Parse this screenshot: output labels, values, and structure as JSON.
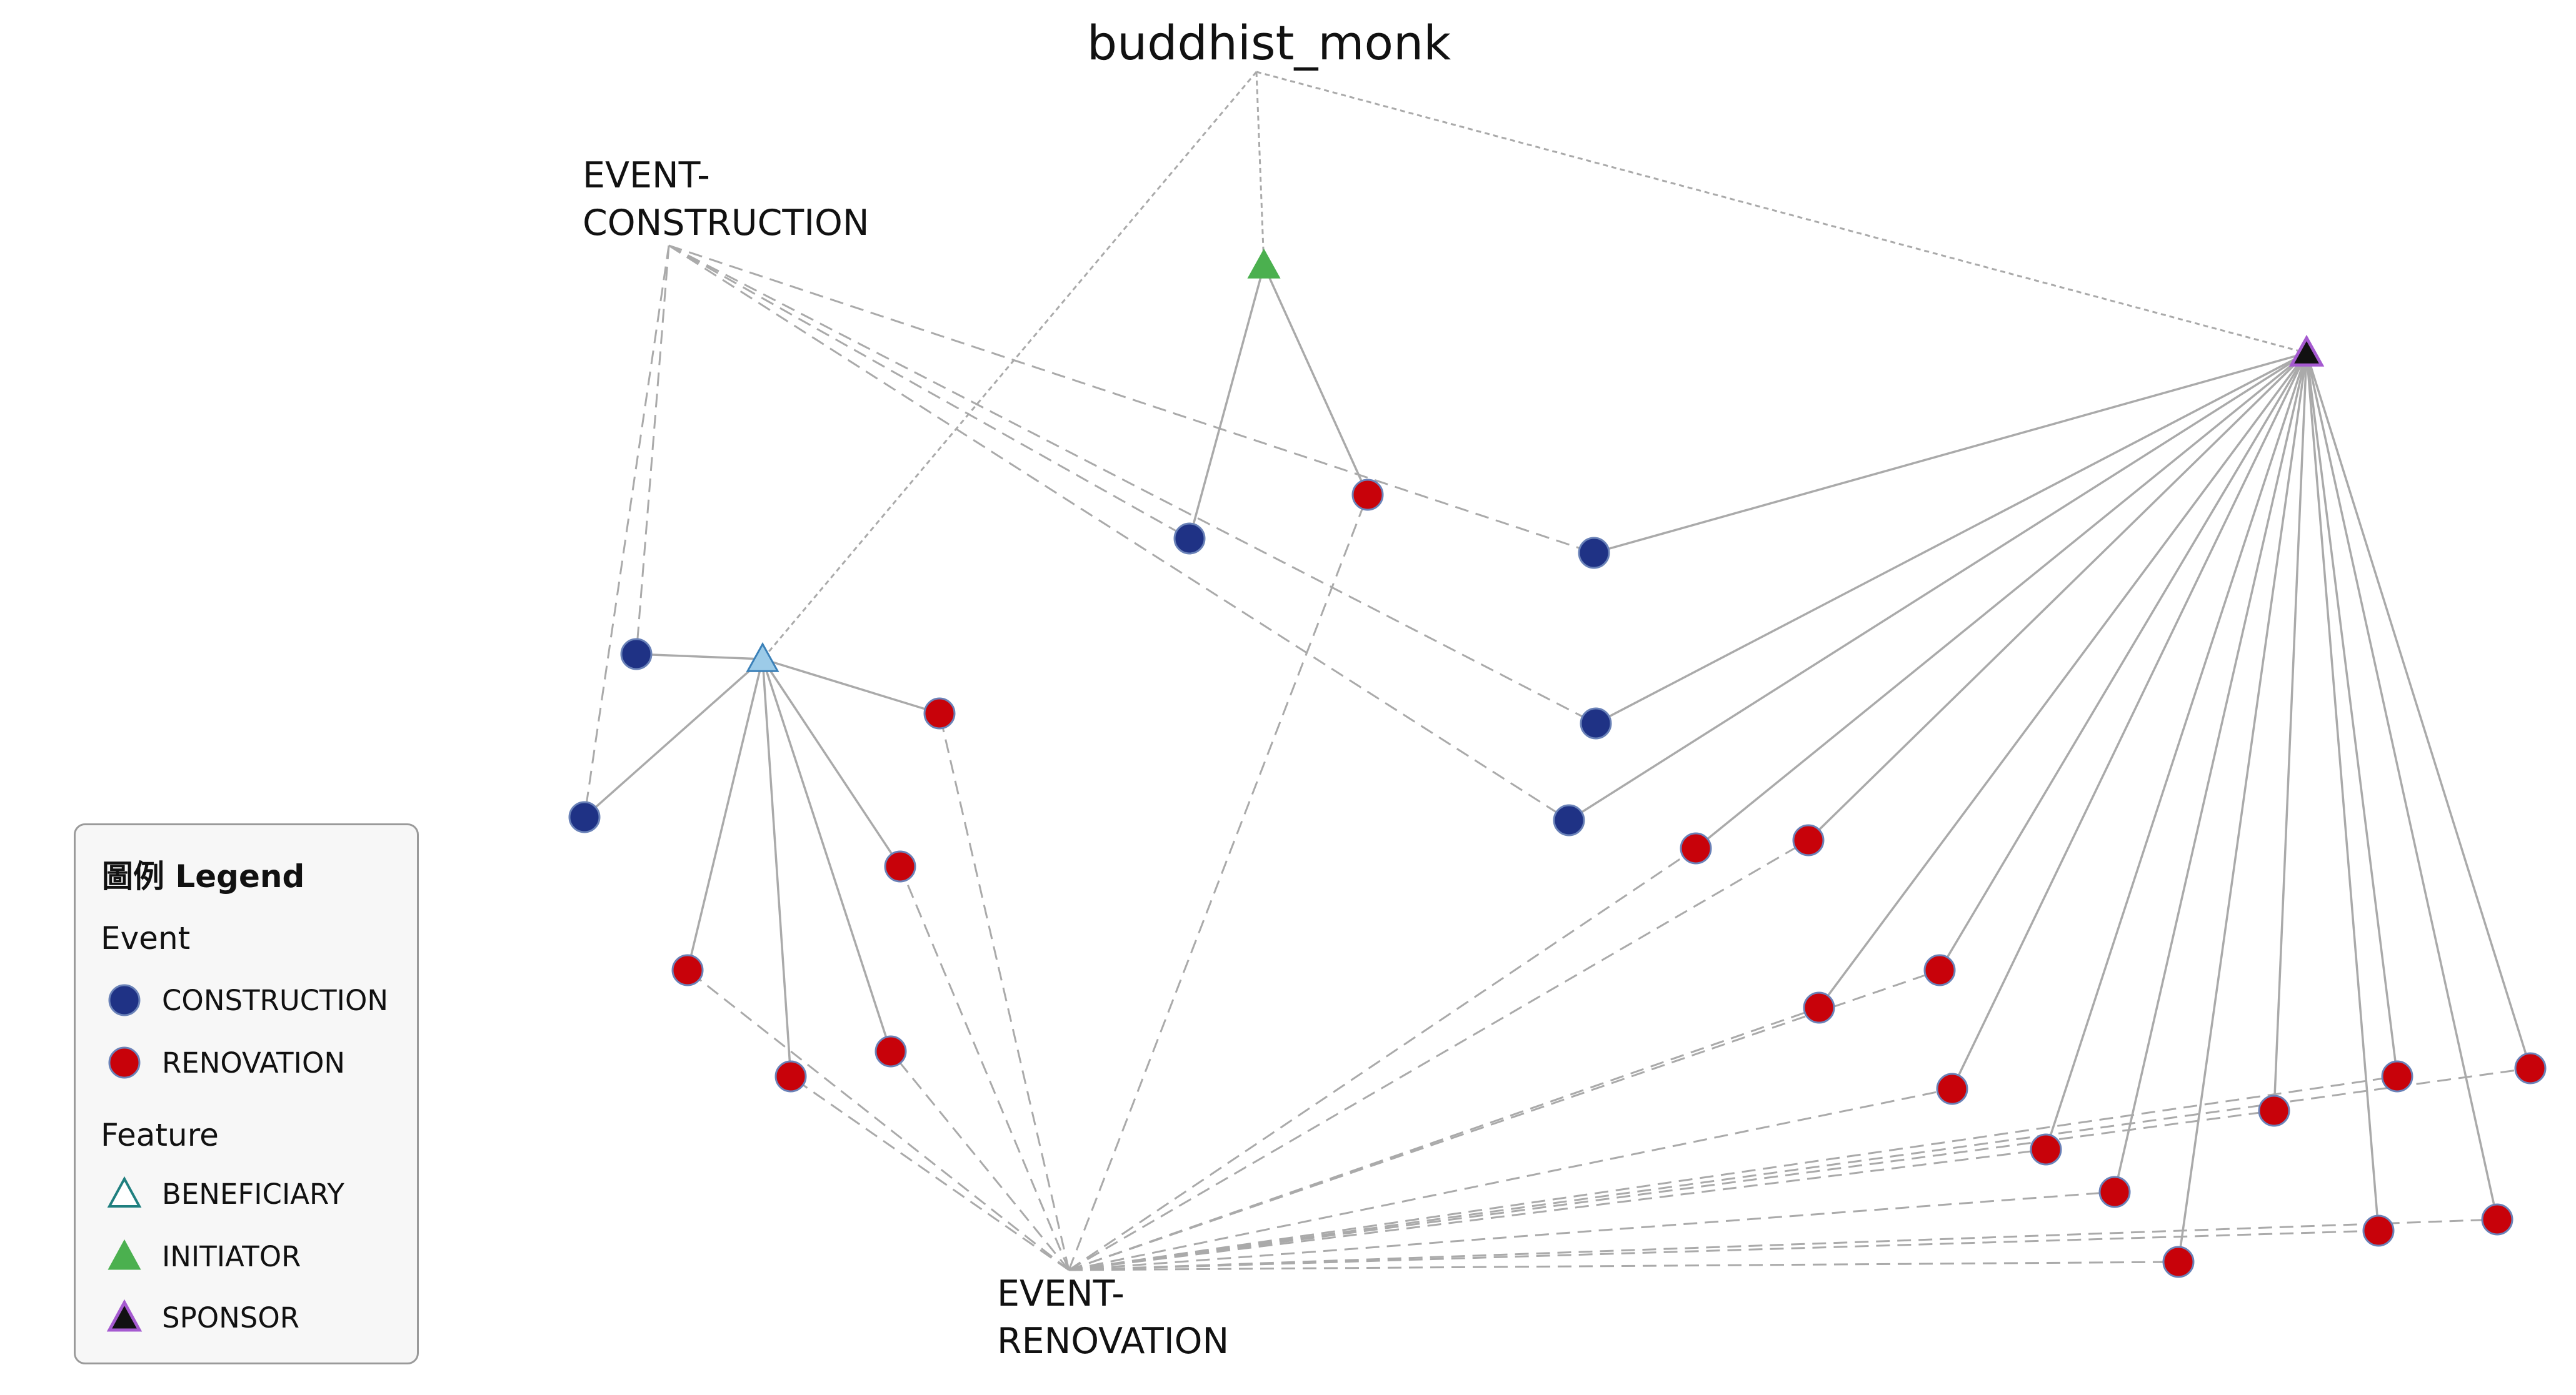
{
  "labels": {
    "root": "buddhist_monk",
    "event_construction": "EVENT-\nCONSTRUCTION",
    "event_renovation": "EVENT-\nRENOVATION"
  },
  "legend": {
    "title": "圖例 Legend",
    "event_heading": "Event",
    "construction": "CONSTRUCTION",
    "renovation": "RENOVATION",
    "feature_heading": "Feature",
    "beneficiary": "BENEFICIARY",
    "initiator": "INITIATOR",
    "sponsor": "SPONSOR"
  },
  "colors": {
    "construction": "#1f3285",
    "renovation": "#c8020a",
    "node_border": "#6a82b8",
    "beneficiary_fill": "#9ccbe8",
    "beneficiary_stroke": "#3a80b8",
    "initiator": "#4bb04f",
    "sponsor_fill": "#111111",
    "sponsor_stroke": "#a55ad0",
    "edge": "#aaaaaa"
  }
}
